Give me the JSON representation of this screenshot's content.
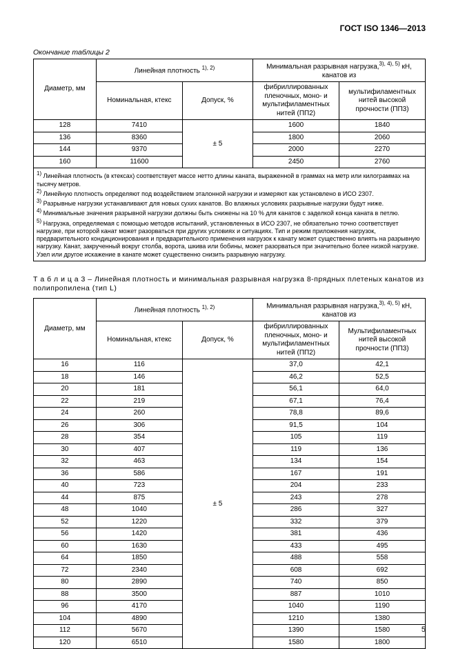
{
  "header": {
    "docTitle": "ГОСТ ISO 1346—2013"
  },
  "table2": {
    "caption": "Окончание таблицы 2",
    "head": {
      "linDensity": "Линейная плотность",
      "linDensitySup": "1), 2)",
      "minBreak": "Минимальная разрывная нагрузка,",
      "minBreakSup": "3), 4), 5)",
      "minBreakUnit": " кН, канатов из",
      "diameter": "Диаметр, мм",
      "nominal": "Номинальная, ктекс",
      "tolerance": "Допуск, %",
      "pp2": "фибриллированных пленочных, моно- и мультифиламентных нитей (ПП2)",
      "pp3": "мультифиламентных нитей высокой прочности (ПП3)"
    },
    "tolerance": "± 5",
    "rows": [
      {
        "d": "128",
        "n": "7410",
        "p2": "1600",
        "p3": "1840"
      },
      {
        "d": "136",
        "n": "8360",
        "p2": "1800",
        "p3": "2060"
      },
      {
        "d": "144",
        "n": "9370",
        "p2": "2000",
        "p3": "2270"
      },
      {
        "d": "160",
        "n": "11600",
        "p2": "2450",
        "p3": "2760"
      }
    ],
    "notes": {
      "n1sup": "1)",
      "n1": " Линейная плотность (в ктексах) соответствует массе нетто длины каната, выраженной в граммах на метр или килограммах на тысячу метров.",
      "n2sup": "2)",
      "n2": " Линейную плотность определяют под воздействием эталонной нагрузки и измеряют как установлено в ИСО 2307.",
      "n3sup": "3)",
      "n3": " Разрывные нагрузки устанавливают для новых сухих канатов. Во влажных условиях разрывные нагрузки будут ниже.",
      "n4sup": "4)",
      "n4": " Минимальные значения разрывной нагрузки должны быть снижены на 10 % для канатов с заделкой конца каната в петлю.",
      "n5sup": "5)",
      "n5": " Нагрузка, определяемая с помощью методов испытаний, установленных в ИСО 2307, не обязательно точно соответствует нагрузке, при которой канат может разорваться при других условиях и ситуациях. Тип и режим приложения нагрузок, предварительного кондиционирования и предварительного применения нагрузок к канату может существенно влиять на разрывную нагрузку. Канат, закрученный вокруг столба, ворота, шкива или бобины, может разорваться при значительно более низкой нагрузке. Узел или другое искажение в канате может существенно снизить разрывную нагрузку."
    }
  },
  "table3": {
    "titlePrefix": "Т а б л и ц а  3",
    "titleRest": " – Линейная плотность и минимальная разрывная нагрузка 8-прядных плетеных канатов из полипропилена (тип L)",
    "head": {
      "linDensity": "Линейная плотность",
      "linDensitySup": "1), 2)",
      "minBreak": "Минимальная разрывная нагрузка,",
      "minBreakSup": "3), 4), 5)",
      "minBreakUnit": " кН, канатов из",
      "diameter": "Диаметр, мм",
      "nominal": "Номинальная, ктекс",
      "tolerance": "Допуск, %",
      "pp2": "фибриллированных пленочных, моно- и мультифиламентных нитей (ПП2)",
      "pp3": "Мультифиламентных нитей высокой прочности (ПП3)"
    },
    "tolerance": "± 5",
    "rows": [
      {
        "d": "16",
        "n": "116",
        "p2": "37,0",
        "p3": "42,1"
      },
      {
        "d": "18",
        "n": "146",
        "p2": "46,2",
        "p3": "52,5"
      },
      {
        "d": "20",
        "n": "181",
        "p2": "56,1",
        "p3": "64,0"
      },
      {
        "d": "22",
        "n": "219",
        "p2": "67,1",
        "p3": "76,4"
      },
      {
        "d": "24",
        "n": "260",
        "p2": "78,8",
        "p3": "89,6"
      },
      {
        "d": "26",
        "n": "306",
        "p2": "91,5",
        "p3": "104"
      },
      {
        "d": "28",
        "n": "354",
        "p2": "105",
        "p3": "119"
      },
      {
        "d": "30",
        "n": "407",
        "p2": "119",
        "p3": "136"
      },
      {
        "d": "32",
        "n": "463",
        "p2": "134",
        "p3": "154"
      },
      {
        "d": "36",
        "n": "586",
        "p2": "167",
        "p3": "191"
      },
      {
        "d": "40",
        "n": "723",
        "p2": "204",
        "p3": "233"
      },
      {
        "d": "44",
        "n": "875",
        "p2": "243",
        "p3": "278"
      },
      {
        "d": "48",
        "n": "1040",
        "p2": "286",
        "p3": "327"
      },
      {
        "d": "52",
        "n": "1220",
        "p2": "332",
        "p3": "379"
      },
      {
        "d": "56",
        "n": "1420",
        "p2": "381",
        "p3": "436"
      },
      {
        "d": "60",
        "n": "1630",
        "p2": "433",
        "p3": "495"
      },
      {
        "d": "64",
        "n": "1850",
        "p2": "488",
        "p3": "558"
      },
      {
        "d": "72",
        "n": "2340",
        "p2": "608",
        "p3": "692"
      },
      {
        "d": "80",
        "n": "2890",
        "p2": "740",
        "p3": "850"
      },
      {
        "d": "88",
        "n": "3500",
        "p2": "887",
        "p3": "1010"
      },
      {
        "d": "96",
        "n": "4170",
        "p2": "1040",
        "p3": "1190"
      },
      {
        "d": "104",
        "n": "4890",
        "p2": "1210",
        "p3": "1380"
      },
      {
        "d": "112",
        "n": "5670",
        "p2": "1390",
        "p3": "1580"
      },
      {
        "d": "120",
        "n": "6510",
        "p2": "1580",
        "p3": "1800"
      }
    ]
  },
  "pageNumber": "5"
}
